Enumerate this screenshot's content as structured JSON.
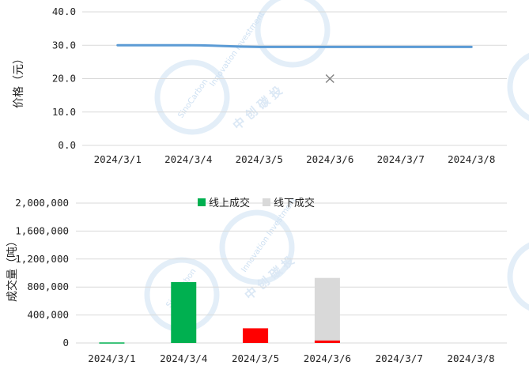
{
  "chart_data": [
    {
      "type": "line",
      "ylabel": "价格（元）",
      "categories": [
        "2024/3/1",
        "2024/3/4",
        "2024/3/5",
        "2024/3/6",
        "2024/3/7",
        "2024/3/8"
      ],
      "yticks": [
        "0.0",
        "10.0",
        "20.0",
        "30.0",
        "40.0"
      ],
      "ylim": [
        0,
        40
      ],
      "series": [
        {
          "values": [
            30.0,
            30.0,
            29.5,
            29.5,
            29.5,
            29.5
          ],
          "color": "#5b9bd5"
        }
      ],
      "markers": [
        {
          "category": "2024/3/6",
          "value": 20.0,
          "symbol": "x",
          "color": "#7f7f7f"
        }
      ],
      "grid": true
    },
    {
      "type": "bar",
      "stacked": true,
      "ylabel": "成交量（吨）",
      "categories": [
        "2024/3/1",
        "2024/3/4",
        "2024/3/5",
        "2024/3/6",
        "2024/3/7",
        "2024/3/8"
      ],
      "yticks": [
        "0",
        "400,000",
        "800,000",
        "1,200,000",
        "1,600,000",
        "2,000,000"
      ],
      "ylim": [
        0,
        2000000
      ],
      "legend_position": "top-center",
      "series": [
        {
          "name": "线上成交",
          "color": "#00b050",
          "values": [
            8000,
            870000,
            0,
            0,
            0,
            0
          ]
        },
        {
          "name": "线下成交",
          "color": "#d9d9d9",
          "values": [
            0,
            0,
            0,
            930000,
            0,
            0
          ]
        }
      ],
      "highlight_series": {
        "color": "#ff0000",
        "values": [
          0,
          0,
          210000,
          35000,
          0,
          0
        ]
      },
      "grid": true
    }
  ],
  "watermark": {
    "brand": "SinoCarbon",
    "tagline": "Innovation Investment",
    "chinese": "中 创 碳 投"
  }
}
